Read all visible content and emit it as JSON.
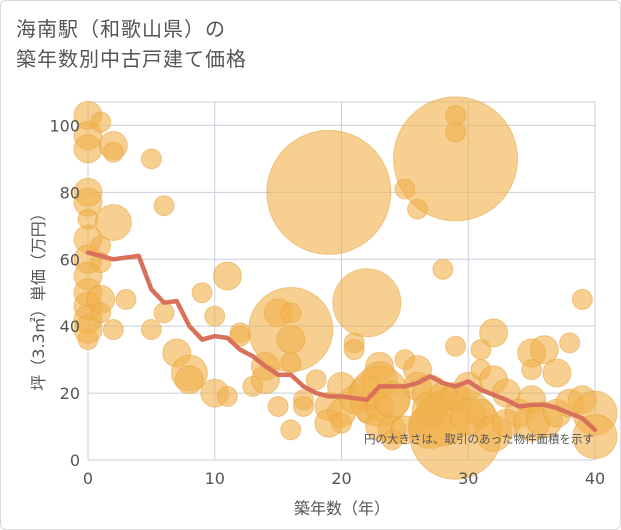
{
  "title_line1": "海南駅（和歌山県）の",
  "title_line2": "築年数別中古戸建て価格",
  "colors": {
    "bubble": "#f0b14d",
    "bubble_stroke": "#e8a23a",
    "line": "#d9705a",
    "grid": "#c8cfdc",
    "axis_text": "#555555"
  },
  "chart_data": {
    "type": "scatter",
    "xlabel": "築年数（年）",
    "ylabel": "坪（3.3㎡）単価（万円）",
    "xlim": [
      0,
      40
    ],
    "ylim": [
      0,
      107
    ],
    "xticks": [
      "0",
      "10",
      "20",
      "30",
      "40"
    ],
    "yticks": [
      "0",
      "20",
      "40",
      "60",
      "80",
      "100"
    ],
    "note": "円の大きさは、取引のあった物件面積を示す",
    "bubbles": [
      {
        "x": 0,
        "y": 103,
        "s": 3
      },
      {
        "x": 0,
        "y": 97,
        "s": 3
      },
      {
        "x": 0,
        "y": 93,
        "s": 3
      },
      {
        "x": 0,
        "y": 80,
        "s": 3
      },
      {
        "x": 0,
        "y": 77,
        "s": 3
      },
      {
        "x": 0,
        "y": 72,
        "s": 2
      },
      {
        "x": 0,
        "y": 66,
        "s": 3
      },
      {
        "x": 0,
        "y": 60,
        "s": 3
      },
      {
        "x": 0,
        "y": 55,
        "s": 3
      },
      {
        "x": 0,
        "y": 50,
        "s": 3
      },
      {
        "x": 0,
        "y": 46,
        "s": 3
      },
      {
        "x": 0,
        "y": 42,
        "s": 3
      },
      {
        "x": 0,
        "y": 39,
        "s": 3
      },
      {
        "x": 0,
        "y": 36,
        "s": 2
      },
      {
        "x": 1,
        "y": 101,
        "s": 2
      },
      {
        "x": 1,
        "y": 64,
        "s": 2
      },
      {
        "x": 1,
        "y": 59,
        "s": 2
      },
      {
        "x": 1,
        "y": 48,
        "s": 3
      },
      {
        "x": 1,
        "y": 44,
        "s": 2
      },
      {
        "x": 2,
        "y": 94,
        "s": 3
      },
      {
        "x": 2,
        "y": 92,
        "s": 2
      },
      {
        "x": 2,
        "y": 71,
        "s": 4
      },
      {
        "x": 2,
        "y": 39,
        "s": 2
      },
      {
        "x": 3,
        "y": 48,
        "s": 2
      },
      {
        "x": 5,
        "y": 90,
        "s": 2
      },
      {
        "x": 6,
        "y": 76,
        "s": 2
      },
      {
        "x": 5,
        "y": 39,
        "s": 2
      },
      {
        "x": 6,
        "y": 44,
        "s": 2
      },
      {
        "x": 7,
        "y": 32,
        "s": 3
      },
      {
        "x": 8,
        "y": 26,
        "s": 4
      },
      {
        "x": 8,
        "y": 24,
        "s": 3
      },
      {
        "x": 9,
        "y": 50,
        "s": 2
      },
      {
        "x": 10,
        "y": 43,
        "s": 2
      },
      {
        "x": 10,
        "y": 20,
        "s": 3
      },
      {
        "x": 11,
        "y": 55,
        "s": 3
      },
      {
        "x": 11,
        "y": 19,
        "s": 2
      },
      {
        "x": 12,
        "y": 38,
        "s": 2
      },
      {
        "x": 12,
        "y": 37,
        "s": 2
      },
      {
        "x": 13,
        "y": 22,
        "s": 2
      },
      {
        "x": 14,
        "y": 28,
        "s": 3
      },
      {
        "x": 14,
        "y": 24,
        "s": 3
      },
      {
        "x": 15,
        "y": 44,
        "s": 3
      },
      {
        "x": 15,
        "y": 16,
        "s": 2
      },
      {
        "x": 16,
        "y": 39,
        "s": 10
      },
      {
        "x": 16,
        "y": 44,
        "s": 2
      },
      {
        "x": 16,
        "y": 36,
        "s": 3
      },
      {
        "x": 16,
        "y": 29,
        "s": 2
      },
      {
        "x": 16,
        "y": 9,
        "s": 2
      },
      {
        "x": 17,
        "y": 18,
        "s": 2
      },
      {
        "x": 17,
        "y": 16,
        "s": 2
      },
      {
        "x": 18,
        "y": 24,
        "s": 2
      },
      {
        "x": 19,
        "y": 80,
        "s": 15
      },
      {
        "x": 19,
        "y": 16,
        "s": 3
      },
      {
        "x": 19,
        "y": 11,
        "s": 3
      },
      {
        "x": 20,
        "y": 22,
        "s": 3
      },
      {
        "x": 20,
        "y": 14,
        "s": 3
      },
      {
        "x": 20,
        "y": 11,
        "s": 2
      },
      {
        "x": 21,
        "y": 35,
        "s": 2
      },
      {
        "x": 21,
        "y": 33,
        "s": 2
      },
      {
        "x": 21,
        "y": 18,
        "s": 3
      },
      {
        "x": 22,
        "y": 47,
        "s": 8
      },
      {
        "x": 22,
        "y": 20,
        "s": 4
      },
      {
        "x": 22,
        "y": 14,
        "s": 2
      },
      {
        "x": 23,
        "y": 28,
        "s": 3
      },
      {
        "x": 23,
        "y": 24,
        "s": 4
      },
      {
        "x": 23,
        "y": 19,
        "s": 7
      },
      {
        "x": 23,
        "y": 16,
        "s": 3
      },
      {
        "x": 23,
        "y": 10,
        "s": 3
      },
      {
        "x": 24,
        "y": 18,
        "s": 4
      },
      {
        "x": 24,
        "y": 9,
        "s": 3
      },
      {
        "x": 24,
        "y": 6,
        "s": 2
      },
      {
        "x": 25,
        "y": 81,
        "s": 2
      },
      {
        "x": 25,
        "y": 30,
        "s": 2
      },
      {
        "x": 25,
        "y": 9,
        "s": 3
      },
      {
        "x": 26,
        "y": 75,
        "s": 2
      },
      {
        "x": 26,
        "y": 27,
        "s": 3
      },
      {
        "x": 26,
        "y": 22,
        "s": 3
      },
      {
        "x": 27,
        "y": 20,
        "s": 4
      },
      {
        "x": 27,
        "y": 15,
        "s": 4
      },
      {
        "x": 27,
        "y": 10,
        "s": 5
      },
      {
        "x": 28,
        "y": 57,
        "s": 2
      },
      {
        "x": 28,
        "y": 19,
        "s": 3
      },
      {
        "x": 28,
        "y": 12,
        "s": 6
      },
      {
        "x": 29,
        "y": 90,
        "s": 15
      },
      {
        "x": 29,
        "y": 103,
        "s": 2
      },
      {
        "x": 29,
        "y": 98,
        "s": 2
      },
      {
        "x": 29,
        "y": 34,
        "s": 2
      },
      {
        "x": 29,
        "y": 8,
        "s": 11
      },
      {
        "x": 29,
        "y": 19,
        "s": 3
      },
      {
        "x": 30,
        "y": 22,
        "s": 3
      },
      {
        "x": 30,
        "y": 13,
        "s": 4
      },
      {
        "x": 31,
        "y": 27,
        "s": 2
      },
      {
        "x": 31,
        "y": 33,
        "s": 2
      },
      {
        "x": 31,
        "y": 14,
        "s": 3
      },
      {
        "x": 32,
        "y": 38,
        "s": 3
      },
      {
        "x": 32,
        "y": 24,
        "s": 3
      },
      {
        "x": 32,
        "y": 8,
        "s": 4
      },
      {
        "x": 33,
        "y": 20,
        "s": 3
      },
      {
        "x": 33,
        "y": 11,
        "s": 3
      },
      {
        "x": 34,
        "y": 14,
        "s": 3
      },
      {
        "x": 35,
        "y": 32,
        "s": 3
      },
      {
        "x": 35,
        "y": 27,
        "s": 2
      },
      {
        "x": 35,
        "y": 18,
        "s": 3
      },
      {
        "x": 35,
        "y": 11,
        "s": 4
      },
      {
        "x": 36,
        "y": 33,
        "s": 3
      },
      {
        "x": 36,
        "y": 12,
        "s": 4
      },
      {
        "x": 37,
        "y": 26,
        "s": 3
      },
      {
        "x": 37,
        "y": 14,
        "s": 3
      },
      {
        "x": 38,
        "y": 35,
        "s": 2
      },
      {
        "x": 38,
        "y": 17,
        "s": 3
      },
      {
        "x": 39,
        "y": 48,
        "s": 2
      },
      {
        "x": 39,
        "y": 18,
        "s": 3
      },
      {
        "x": 40,
        "y": 14,
        "s": 5
      },
      {
        "x": 40,
        "y": 7,
        "s": 5
      }
    ],
    "series": [
      {
        "x": [
          0,
          2,
          4,
          5,
          6,
          7,
          8,
          9,
          10,
          11,
          12,
          13,
          14,
          15,
          16,
          17,
          18,
          19,
          20,
          21,
          22,
          23,
          24,
          25,
          26,
          27,
          28,
          29,
          30,
          31,
          32,
          33,
          34,
          35,
          36,
          37,
          38,
          39,
          40
        ],
        "values": [
          62,
          60,
          61,
          51,
          47,
          47.5,
          40,
          36,
          37,
          36.5,
          33,
          31,
          28,
          25.5,
          25.5,
          22,
          20,
          19,
          19,
          18.5,
          18,
          22,
          22,
          22,
          23,
          25,
          23,
          22,
          23.5,
          21,
          19.5,
          18,
          16,
          16.5,
          16.5,
          15.5,
          14,
          12.5,
          9
        ]
      }
    ]
  }
}
